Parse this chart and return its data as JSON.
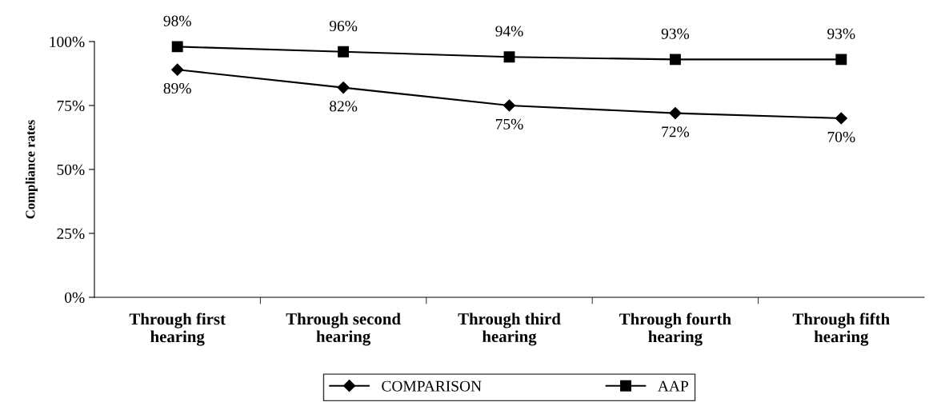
{
  "chart_data": {
    "type": "line",
    "ylabel": "Compliance rates",
    "categories": [
      "Through first\nhearing",
      "Through second\nhearing",
      "Through third\nhearing",
      "Through fourth\nhearing",
      "Through fifth\nhearing"
    ],
    "series": [
      {
        "name": "COMPARISON",
        "color": "#000000",
        "marker": "diamond",
        "values": [
          89,
          82,
          75,
          72,
          70
        ],
        "value_labels": [
          "89%",
          "82%",
          "75%",
          "72%",
          "70%"
        ]
      },
      {
        "name": "AAP",
        "color": "#000000",
        "marker": "square",
        "values": [
          98,
          96,
          94,
          93,
          93
        ],
        "value_labels": [
          "98%",
          "96%",
          "94%",
          "93%",
          "93%"
        ]
      }
    ],
    "ylim": [
      0,
      100
    ],
    "yticks": [
      {
        "value": 0,
        "label": "0%"
      },
      {
        "value": 25,
        "label": "25%"
      },
      {
        "value": 50,
        "label": "50%"
      },
      {
        "value": 75,
        "label": "75%"
      },
      {
        "value": 100,
        "label": "100%"
      }
    ],
    "grid": false,
    "legend": "bottom",
    "line_style": "solid"
  }
}
